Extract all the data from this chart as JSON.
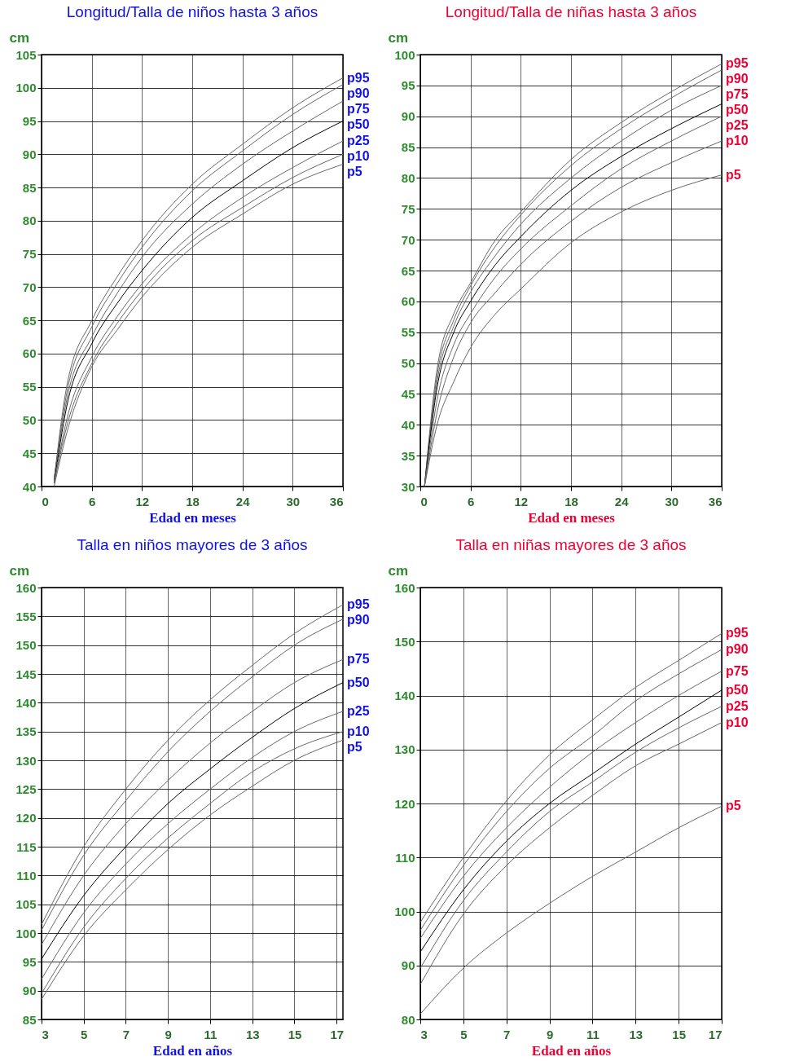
{
  "chart_data": [
    {
      "type": "line",
      "title": "Longitud/Talla de niños hasta 3 años",
      "xlabel": "Edad en meses",
      "ylabel": "cm",
      "grid": true,
      "xlim": [
        0,
        36
      ],
      "xticks": [
        0,
        6,
        12,
        18,
        24,
        30,
        36
      ],
      "ylim": [
        40,
        105
      ],
      "yticks": [
        40,
        45,
        50,
        55,
        60,
        65,
        70,
        75,
        80,
        85,
        90,
        95,
        100,
        105
      ],
      "x": [
        1.5,
        3,
        6,
        9,
        12,
        18,
        24,
        30,
        36
      ],
      "series": [
        {
          "name": "p95",
          "color": "#666666",
          "values": [
            41,
            55,
            65,
            71.5,
            77,
            85.5,
            91.5,
            97,
            101.5
          ]
        },
        {
          "name": "p90",
          "color": "#666666",
          "values": [
            41,
            54,
            64,
            70.5,
            76,
            84.5,
            90.5,
            96,
            100.5
          ]
        },
        {
          "name": "p75",
          "color": "#666666",
          "values": [
            41,
            53,
            62.5,
            69,
            74.5,
            82.5,
            88.5,
            93.5,
            98
          ]
        },
        {
          "name": "p50",
          "color": "#000000",
          "values": [
            40.5,
            52,
            61.5,
            67.5,
            72.5,
            80.5,
            86,
            91,
            95
          ]
        },
        {
          "name": "p25",
          "color": "#666666",
          "values": [
            40.5,
            50,
            59.5,
            65.5,
            70.5,
            78,
            83.5,
            88,
            92
          ]
        },
        {
          "name": "p10",
          "color": "#666666",
          "values": [
            40.5,
            49,
            58.5,
            64.5,
            69.5,
            77,
            82,
            86.5,
            90
          ]
        },
        {
          "name": "p5",
          "color": "#666666",
          "values": [
            40,
            48,
            58,
            63.5,
            68.5,
            76,
            81,
            85.5,
            88.5
          ]
        }
      ]
    },
    {
      "type": "line",
      "title": "Longitud/Talla de niñas hasta 3 años",
      "xlabel": "Edad en meses",
      "ylabel": "cm",
      "grid": true,
      "xlim": [
        0,
        36
      ],
      "xticks": [
        0,
        6,
        12,
        18,
        24,
        30,
        36
      ],
      "ylim": [
        30,
        100
      ],
      "yticks": [
        30,
        35,
        40,
        45,
        50,
        55,
        60,
        65,
        70,
        75,
        80,
        85,
        90,
        95,
        100
      ],
      "x": [
        0.5,
        2,
        4,
        6,
        9,
        12,
        18,
        24,
        30,
        36
      ],
      "series": [
        {
          "name": "p95",
          "color": "#666666",
          "values": [
            30,
            49,
            58,
            63,
            70,
            74.5,
            83,
            89,
            94,
            98.5
          ]
        },
        {
          "name": "p90",
          "color": "#666666",
          "values": [
            30,
            48,
            57,
            62.5,
            69,
            74,
            82,
            88,
            93,
            97.5
          ]
        },
        {
          "name": "p75",
          "color": "#666666",
          "values": [
            30,
            47,
            56,
            61.5,
            67.5,
            72.5,
            80,
            86,
            91,
            95
          ]
        },
        {
          "name": "p50",
          "color": "#000000",
          "values": [
            30,
            46,
            55,
            60,
            66,
            70.5,
            78,
            83.5,
            88,
            92
          ]
        },
        {
          "name": "p25",
          "color": "#666666",
          "values": [
            30,
            44,
            53,
            58,
            64,
            68.5,
            75.5,
            81.5,
            86,
            90
          ]
        },
        {
          "name": "p10",
          "color": "#666666",
          "values": [
            30,
            42,
            51,
            56.5,
            61.5,
            66,
            73,
            78.5,
            82.5,
            86
          ]
        },
        {
          "name": "p5",
          "color": "#666666",
          "values": [
            30,
            40,
            47,
            52.5,
            58,
            62,
            69.5,
            74.5,
            78,
            80.5
          ]
        }
      ]
    },
    {
      "type": "line",
      "title": "Talla en niños mayores de 3 años",
      "xlabel": "Edad en años",
      "ylabel": "cm",
      "grid": true,
      "xlim": [
        3,
        17.3
      ],
      "xticks": [
        3,
        5,
        7,
        9,
        11,
        13,
        15,
        17
      ],
      "ylim": [
        85,
        160
      ],
      "yticks": [
        85,
        90,
        95,
        100,
        105,
        110,
        115,
        120,
        125,
        130,
        135,
        140,
        145,
        150,
        155,
        160
      ],
      "x": [
        3,
        5,
        7,
        9,
        11,
        13,
        15,
        17.3
      ],
      "series": [
        {
          "name": "p95",
          "color": "#666666",
          "values": [
            101.5,
            115,
            125,
            133.5,
            140.5,
            146.5,
            152,
            157
          ]
        },
        {
          "name": "p90",
          "color": "#666666",
          "values": [
            100.5,
            113.5,
            123,
            131.5,
            138.5,
            144.5,
            150,
            154.5
          ]
        },
        {
          "name": "p75",
          "color": "#666666",
          "values": [
            98,
            110,
            119,
            126.5,
            133,
            138.5,
            143.5,
            147.5
          ]
        },
        {
          "name": "p50",
          "color": "#000000",
          "values": [
            95.5,
            106.5,
            115,
            122.5,
            128.5,
            134,
            139,
            143.5
          ]
        },
        {
          "name": "p25",
          "color": "#666666",
          "values": [
            92,
            103.5,
            112,
            119,
            125,
            130.5,
            135,
            138.5
          ]
        },
        {
          "name": "p10",
          "color": "#666666",
          "values": [
            89.5,
            101,
            109.5,
            116.5,
            122.5,
            128,
            132,
            135
          ]
        },
        {
          "name": "p5",
          "color": "#666666",
          "values": [
            88.5,
            99.5,
            107.5,
            114.5,
            120.5,
            125.5,
            130,
            133.5
          ]
        }
      ]
    },
    {
      "type": "line",
      "title": "Talla en niñas mayores de 3 años",
      "xlabel": "Edad en años",
      "ylabel": "cm",
      "grid": true,
      "xlim": [
        3,
        17
      ],
      "xticks": [
        3,
        5,
        7,
        9,
        11,
        13,
        15,
        17
      ],
      "ylim": [
        80,
        160
      ],
      "yticks": [
        80,
        90,
        100,
        110,
        120,
        130,
        140,
        150,
        160
      ],
      "x": [
        3,
        5,
        7,
        9,
        11,
        13,
        15,
        17
      ],
      "series": [
        {
          "name": "p95",
          "color": "#666666",
          "values": [
            98,
            110,
            120.5,
            129,
            135.5,
            141.5,
            146.5,
            151.5
          ]
        },
        {
          "name": "p90",
          "color": "#666666",
          "values": [
            96.5,
            108.5,
            118.5,
            126.5,
            132.5,
            139,
            144,
            148.5
          ]
        },
        {
          "name": "p75",
          "color": "#666666",
          "values": [
            95,
            106.5,
            115.5,
            123,
            129.5,
            135,
            140,
            144.5
          ]
        },
        {
          "name": "p50",
          "color": "#000000",
          "values": [
            92.5,
            104,
            113,
            120,
            125.5,
            131,
            136,
            141
          ]
        },
        {
          "name": "p25",
          "color": "#666666",
          "values": [
            89.5,
            102,
            111,
            118.5,
            124,
            129.5,
            134,
            138
          ]
        },
        {
          "name": "p10",
          "color": "#666666",
          "values": [
            86.5,
            99.5,
            108.5,
            115.5,
            121.5,
            127,
            131,
            135
          ]
        },
        {
          "name": "p5",
          "color": "#666666",
          "values": [
            81,
            89.5,
            96,
            101.5,
            106.5,
            111,
            115.5,
            119.5
          ]
        }
      ]
    }
  ]
}
